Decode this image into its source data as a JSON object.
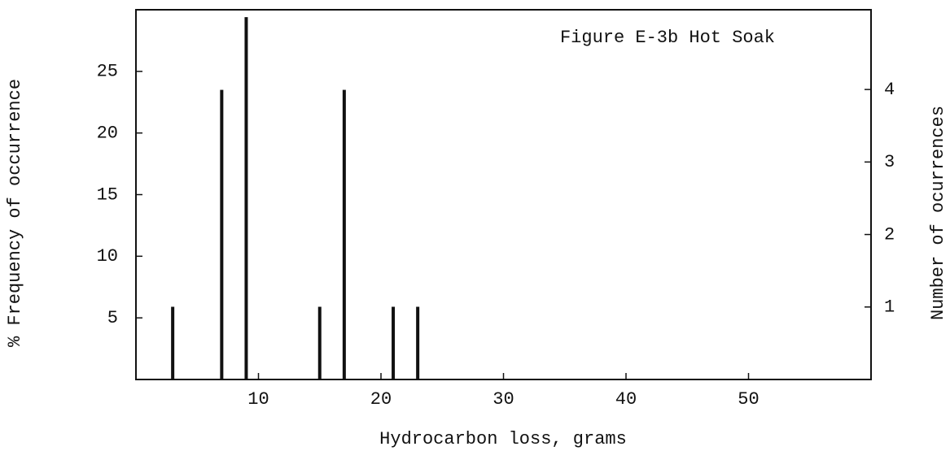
{
  "chart_data": {
    "type": "bar",
    "annotation": "Figure E-3b Hot Soak",
    "xlabel": "Hydrocarbon loss, grams",
    "ylabel": "% Frequency of occurrence",
    "y2label": "Number of ocurrences",
    "x": [
      3,
      7,
      9,
      15,
      17,
      21,
      23
    ],
    "values": [
      5.9,
      23.5,
      29.4,
      5.9,
      23.5,
      5.9,
      5.9
    ],
    "color": "#111111",
    "xlim": [
      0,
      60
    ],
    "xticks": [
      10,
      20,
      30,
      40,
      50
    ],
    "ylim": [
      0,
      30
    ],
    "yticks": [
      5,
      10,
      15,
      20,
      25
    ],
    "y2lim": [
      0,
      5.1
    ],
    "y2ticks": [
      1,
      2,
      3,
      4
    ]
  }
}
